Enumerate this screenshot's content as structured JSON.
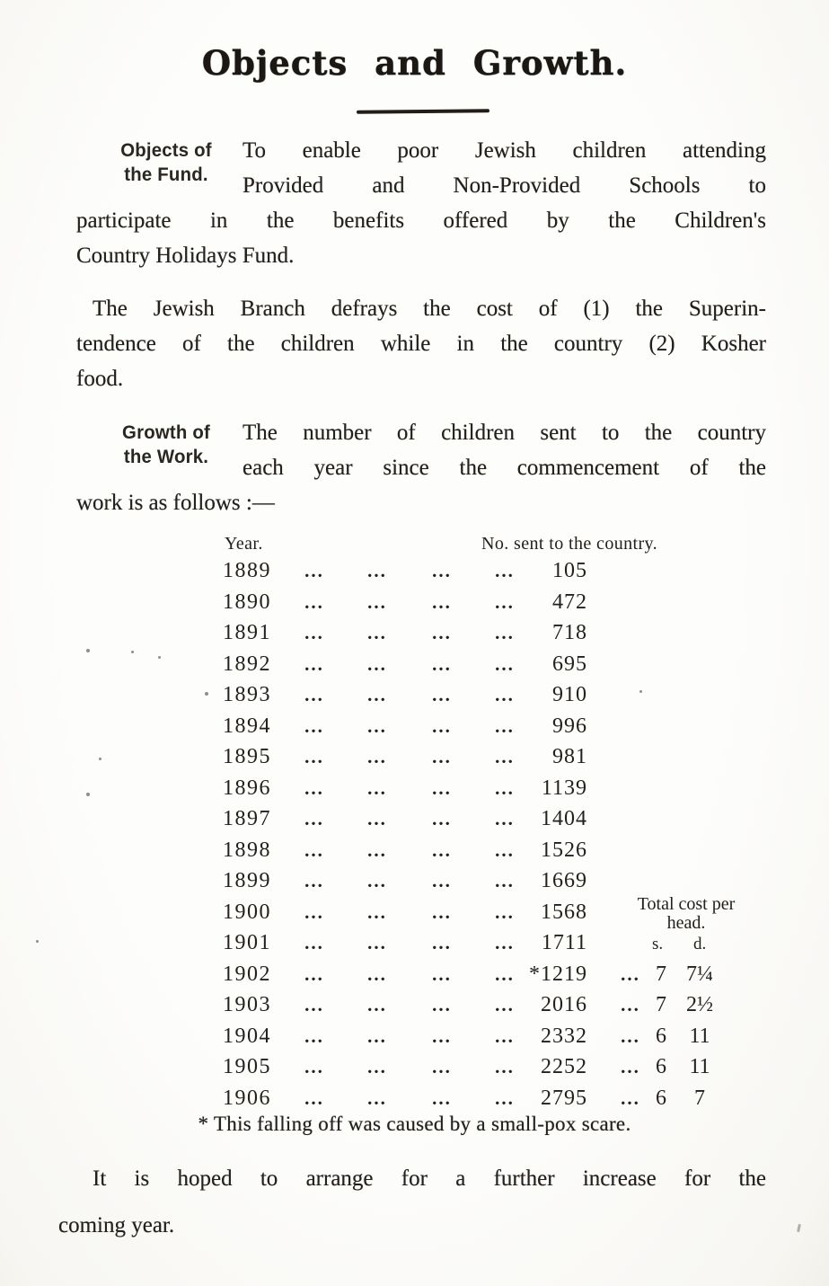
{
  "page_title": "Objects and Growth.",
  "sections": {
    "objects": {
      "heading": [
        "Objects of",
        "the Fund."
      ],
      "indented_lines": [
        "To enable poor Jewish children attending",
        "Provided and Non-Provided Schools to"
      ],
      "full_lines": [
        "participate in the benefits offered by the Children's",
        "Country Holidays Fund."
      ]
    },
    "branch": {
      "lines": [
        "The Jewish Branch defrays the cost of (1) the Superin-",
        "tendence of the children while in the country (2) Kosher",
        "food."
      ]
    },
    "growth": {
      "heading": [
        "Growth of",
        "the Work."
      ],
      "indented_lines": [
        "The number of children sent to the country",
        "each year since the commencement of the"
      ],
      "full_lines": [
        "work is as follows :—"
      ]
    },
    "closing": {
      "lines": [
        "It is hoped to arrange for a further increase for the",
        "coming year."
      ]
    }
  },
  "table": {
    "year_header": "Year.",
    "sent_header": "No. sent to the country.",
    "cost_header_line1": "Total cost per",
    "cost_header_line2": "head.",
    "cost_unit_s": "s.",
    "cost_unit_d": "d.",
    "dot_leader": "...",
    "rows": [
      {
        "year": "1889",
        "sent": "105"
      },
      {
        "year": "1890",
        "sent": "472"
      },
      {
        "year": "1891",
        "sent": "718"
      },
      {
        "year": "1892",
        "sent": "695"
      },
      {
        "year": "1893",
        "sent": "910"
      },
      {
        "year": "1894",
        "sent": "996"
      },
      {
        "year": "1895",
        "sent": "981"
      },
      {
        "year": "1896",
        "sent": "1139"
      },
      {
        "year": "1897",
        "sent": "1404"
      },
      {
        "year": "1898",
        "sent": "1526"
      },
      {
        "year": "1899",
        "sent": "1669"
      },
      {
        "year": "1900",
        "sent": "1568"
      },
      {
        "year": "1901",
        "sent": "1711"
      },
      {
        "year": "1902",
        "sent": "*1219",
        "cost_s": "7",
        "cost_d": "7¼"
      },
      {
        "year": "1903",
        "sent": "2016",
        "cost_s": "7",
        "cost_d": "2½"
      },
      {
        "year": "1904",
        "sent": "2332",
        "cost_s": "6",
        "cost_d": "11"
      },
      {
        "year": "1905",
        "sent": "2252",
        "cost_s": "6",
        "cost_d": "11"
      },
      {
        "year": "1906",
        "sent": "2795",
        "cost_s": "6",
        "cost_d": "7"
      }
    ],
    "footnote": "* This falling off was caused by a small-pox scare."
  }
}
